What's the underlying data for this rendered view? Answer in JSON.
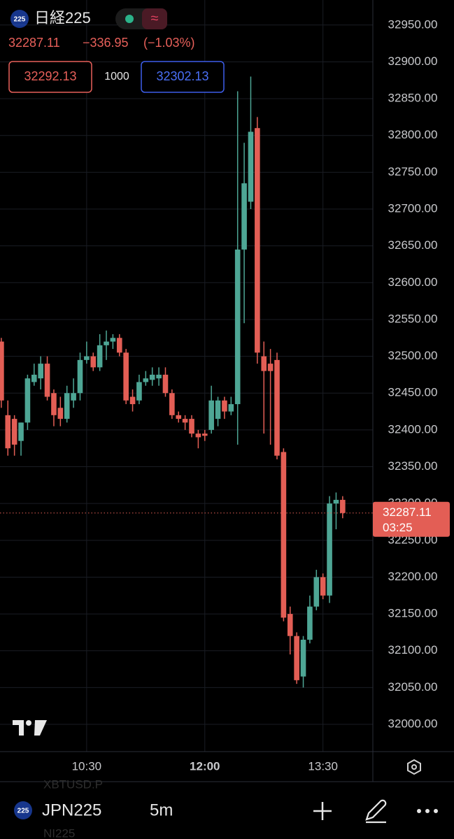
{
  "header": {
    "badge": "225",
    "symbol": "日経225",
    "change": "−336.95",
    "change_pct": "(−1.03%)"
  },
  "trade": {
    "sell": "32292.13",
    "qty": "1000",
    "buy": "32302.13"
  },
  "countdown": "03:25",
  "toolbar": {
    "badge": "225",
    "symbol": "JPN225",
    "interval": "5m",
    "above": "XBTUSD.P",
    "below": "NI225"
  },
  "chart_data": {
    "type": "candlestick",
    "x": [
      "09:25",
      "09:30",
      "09:35",
      "09:40",
      "09:45",
      "09:50",
      "09:55",
      "10:00",
      "10:05",
      "10:10",
      "10:15",
      "10:20",
      "10:25",
      "10:30",
      "10:35",
      "10:40",
      "10:45",
      "10:50",
      "10:55",
      "11:00",
      "11:05",
      "11:10",
      "11:15",
      "11:20",
      "11:25",
      "11:30",
      "11:35",
      "11:40",
      "11:45",
      "11:50",
      "11:55",
      "12:00",
      "12:05",
      "12:10",
      "12:15",
      "12:20",
      "12:25",
      "12:30",
      "12:35",
      "12:40",
      "12:45",
      "12:50",
      "12:55",
      "13:00",
      "13:05",
      "13:10",
      "13:15",
      "13:20",
      "13:25",
      "13:30",
      "13:35",
      "13:40",
      "13:45"
    ],
    "open": [
      32520,
      32420,
      32415,
      32385,
      32410,
      32465,
      32470,
      32490,
      32450,
      32430,
      32415,
      32440,
      32450,
      32495,
      32500,
      32485,
      32515,
      32520,
      32525,
      32505,
      32445,
      32440,
      32465,
      32468,
      32470,
      32475,
      32450,
      32420,
      32415,
      32415,
      32395,
      32395,
      32400,
      32415,
      32440,
      32425,
      32435,
      32645,
      32710,
      32810,
      32500,
      32490,
      32495,
      32370,
      32150,
      32120,
      32065,
      32115,
      32160,
      32200,
      32175,
      32300,
      32305
    ],
    "high": [
      32525,
      32440,
      32420,
      32410,
      32475,
      32490,
      32500,
      32500,
      32455,
      32445,
      32460,
      32470,
      32505,
      32520,
      32505,
      32530,
      32535,
      32530,
      32530,
      32510,
      32455,
      32475,
      32480,
      32485,
      32485,
      32485,
      32455,
      32425,
      32420,
      32420,
      32400,
      32400,
      32460,
      32445,
      32445,
      32445,
      32860,
      32790,
      32880,
      32825,
      32520,
      32510,
      32505,
      32375,
      32160,
      32125,
      32120,
      32175,
      32210,
      32205,
      32310,
      32315,
      32310
    ],
    "low": [
      32430,
      32365,
      32365,
      32365,
      32400,
      32460,
      32455,
      32440,
      32405,
      32405,
      32410,
      32430,
      32440,
      32490,
      32480,
      32480,
      32495,
      32510,
      32500,
      32435,
      32425,
      32435,
      32460,
      32460,
      32460,
      32445,
      32415,
      32410,
      32400,
      32390,
      32375,
      32385,
      32395,
      32405,
      32415,
      32420,
      32380,
      32545,
      32700,
      32490,
      32395,
      32380,
      32360,
      32140,
      32095,
      32055,
      32050,
      32110,
      32155,
      32170,
      32165,
      32265,
      32280
    ],
    "close": [
      32440,
      32375,
      32380,
      32410,
      32470,
      32475,
      32490,
      32445,
      32420,
      32415,
      32450,
      32450,
      32495,
      32500,
      32485,
      32515,
      32520,
      32525,
      32505,
      32440,
      32435,
      32465,
      32470,
      32475,
      32475,
      32450,
      32420,
      32415,
      32410,
      32395,
      32390,
      32392,
      32440,
      32440,
      32425,
      32435,
      32645,
      32735,
      32805,
      32505,
      32480,
      32480,
      32365,
      32145,
      32120,
      32060,
      32115,
      32160,
      32200,
      32175,
      32300,
      32305,
      32287.11
    ],
    "up_color": "#4ea695",
    "down_color": "#e35e55",
    "last_price": 32287.11,
    "xlim": [
      "09:24",
      "14:08"
    ],
    "xticks": [
      "10:30",
      "12:00",
      "13:30"
    ],
    "ylim": [
      31963,
      32984
    ],
    "yticks": [
      {
        "value": 32000,
        "label": "32000.00"
      },
      {
        "value": 32050,
        "label": "32050.00"
      },
      {
        "value": 32100,
        "label": "32100.00"
      },
      {
        "value": 32150,
        "label": "32150.00"
      },
      {
        "value": 32200,
        "label": "32200.00"
      },
      {
        "value": 32250,
        "label": "32250.00"
      },
      {
        "value": 32300,
        "label": "32300.00"
      },
      {
        "value": 32350,
        "label": "32350.00"
      },
      {
        "value": 32400,
        "label": "32400.00"
      },
      {
        "value": 32450,
        "label": "32450.00"
      },
      {
        "value": 32500,
        "label": "32500.00"
      },
      {
        "value": 32550,
        "label": "32550.00"
      },
      {
        "value": 32600,
        "label": "32600.00"
      },
      {
        "value": 32650,
        "label": "32650.00"
      },
      {
        "value": 32700,
        "label": "32700.00"
      },
      {
        "value": 32750,
        "label": "32750.00"
      },
      {
        "value": 32800,
        "label": "32800.00"
      },
      {
        "value": 32850,
        "label": "32850.00"
      },
      {
        "value": 32900,
        "label": "32900.00"
      },
      {
        "value": 32950,
        "label": "32950.00"
      }
    ],
    "grid": true
  }
}
